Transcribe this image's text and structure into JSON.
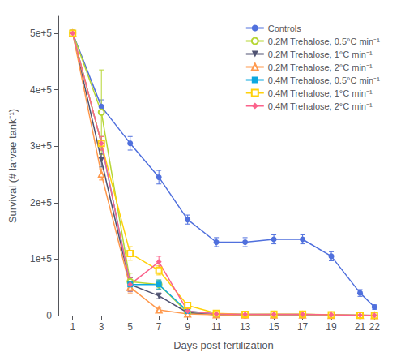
{
  "chart_data": {
    "type": "line",
    "xlabel": "Days post fertilization",
    "ylabel": "Survival (# larvae tank⁻¹)",
    "x": [
      1,
      3,
      5,
      7,
      9,
      11,
      13,
      15,
      17,
      19,
      21,
      22
    ],
    "series": [
      {
        "name": "Controls",
        "marker": "circle",
        "values": [
          500000,
          370000,
          305000,
          245000,
          170000,
          130000,
          130000,
          135000,
          135000,
          105000,
          40000,
          15000
        ],
        "errors": [
          5000,
          12000,
          12000,
          12000,
          8000,
          8000,
          8000,
          8000,
          8000,
          8000,
          6000,
          4000
        ]
      },
      {
        "name": "0.2M Trehalose, 0.5°C min⁻¹",
        "marker": "open_circle",
        "values": [
          500000,
          360000,
          60000,
          55000,
          5000,
          2000,
          1000,
          1000,
          1000,
          500,
          200,
          100
        ],
        "errors": [
          5000,
          75000,
          15000,
          8000,
          2000,
          800,
          500,
          500,
          500,
          300,
          150,
          80
        ]
      },
      {
        "name": "0.2M Trehalose, 1°C min⁻¹",
        "marker": "triangle_down",
        "values": [
          500000,
          275000,
          55000,
          35000,
          5000,
          1500,
          1000,
          1000,
          1000,
          500,
          200,
          100
        ],
        "errors": [
          5000,
          12000,
          12000,
          5000,
          1500,
          700,
          400,
          400,
          400,
          250,
          120,
          60
        ]
      },
      {
        "name": "0.2M Trehalose, 2°C min⁻¹",
        "marker": "open_triangle_up",
        "values": [
          500000,
          250000,
          50000,
          10000,
          3000,
          1500,
          1000,
          1000,
          1000,
          500,
          200,
          100
        ],
        "errors": [
          5000,
          10000,
          10000,
          3000,
          1200,
          600,
          400,
          400,
          400,
          200,
          100,
          50
        ]
      },
      {
        "name": "0.4M Trehalose, 0.5°C min⁻¹",
        "marker": "square",
        "values": [
          500000,
          305000,
          55000,
          55000,
          8000,
          3000,
          2000,
          2000,
          2000,
          1500,
          800,
          300
        ],
        "errors": [
          5000,
          12000,
          12000,
          8000,
          2000,
          1000,
          700,
          700,
          700,
          500,
          350,
          150
        ]
      },
      {
        "name": "0.4M Trehalose, 1°C min⁻¹",
        "marker": "open_square",
        "values": [
          500000,
          305000,
          110000,
          80000,
          18000,
          4000,
          2000,
          2500,
          2500,
          1500,
          700,
          300
        ],
        "errors": [
          5000,
          12000,
          12000,
          8000,
          3000,
          1000,
          700,
          700,
          700,
          500,
          300,
          120
        ]
      },
      {
        "name": "0.4M Trehalose, 2°C min⁻¹",
        "marker": "diamond",
        "values": [
          500000,
          305000,
          55000,
          95000,
          8000,
          3000,
          2000,
          2000,
          2000,
          1500,
          800,
          300
        ],
        "errors": [
          5000,
          12000,
          12000,
          10000,
          1800,
          1000,
          700,
          700,
          700,
          500,
          350,
          150
        ]
      }
    ],
    "xlim": [
      0,
      23
    ],
    "xticks": [
      1,
      3,
      5,
      7,
      9,
      11,
      13,
      15,
      17,
      19,
      21,
      22
    ],
    "ylim": [
      0,
      530000
    ],
    "yticks": [
      0,
      {
        "value": 100000,
        "label": "1e+5"
      },
      {
        "value": 200000,
        "label": "2e+5"
      },
      {
        "value": 300000,
        "label": "3e+5"
      },
      {
        "value": 400000,
        "label": "4e+5"
      },
      {
        "value": 500000,
        "label": "5e+5"
      }
    ],
    "grid": false,
    "legend": "upper right"
  }
}
